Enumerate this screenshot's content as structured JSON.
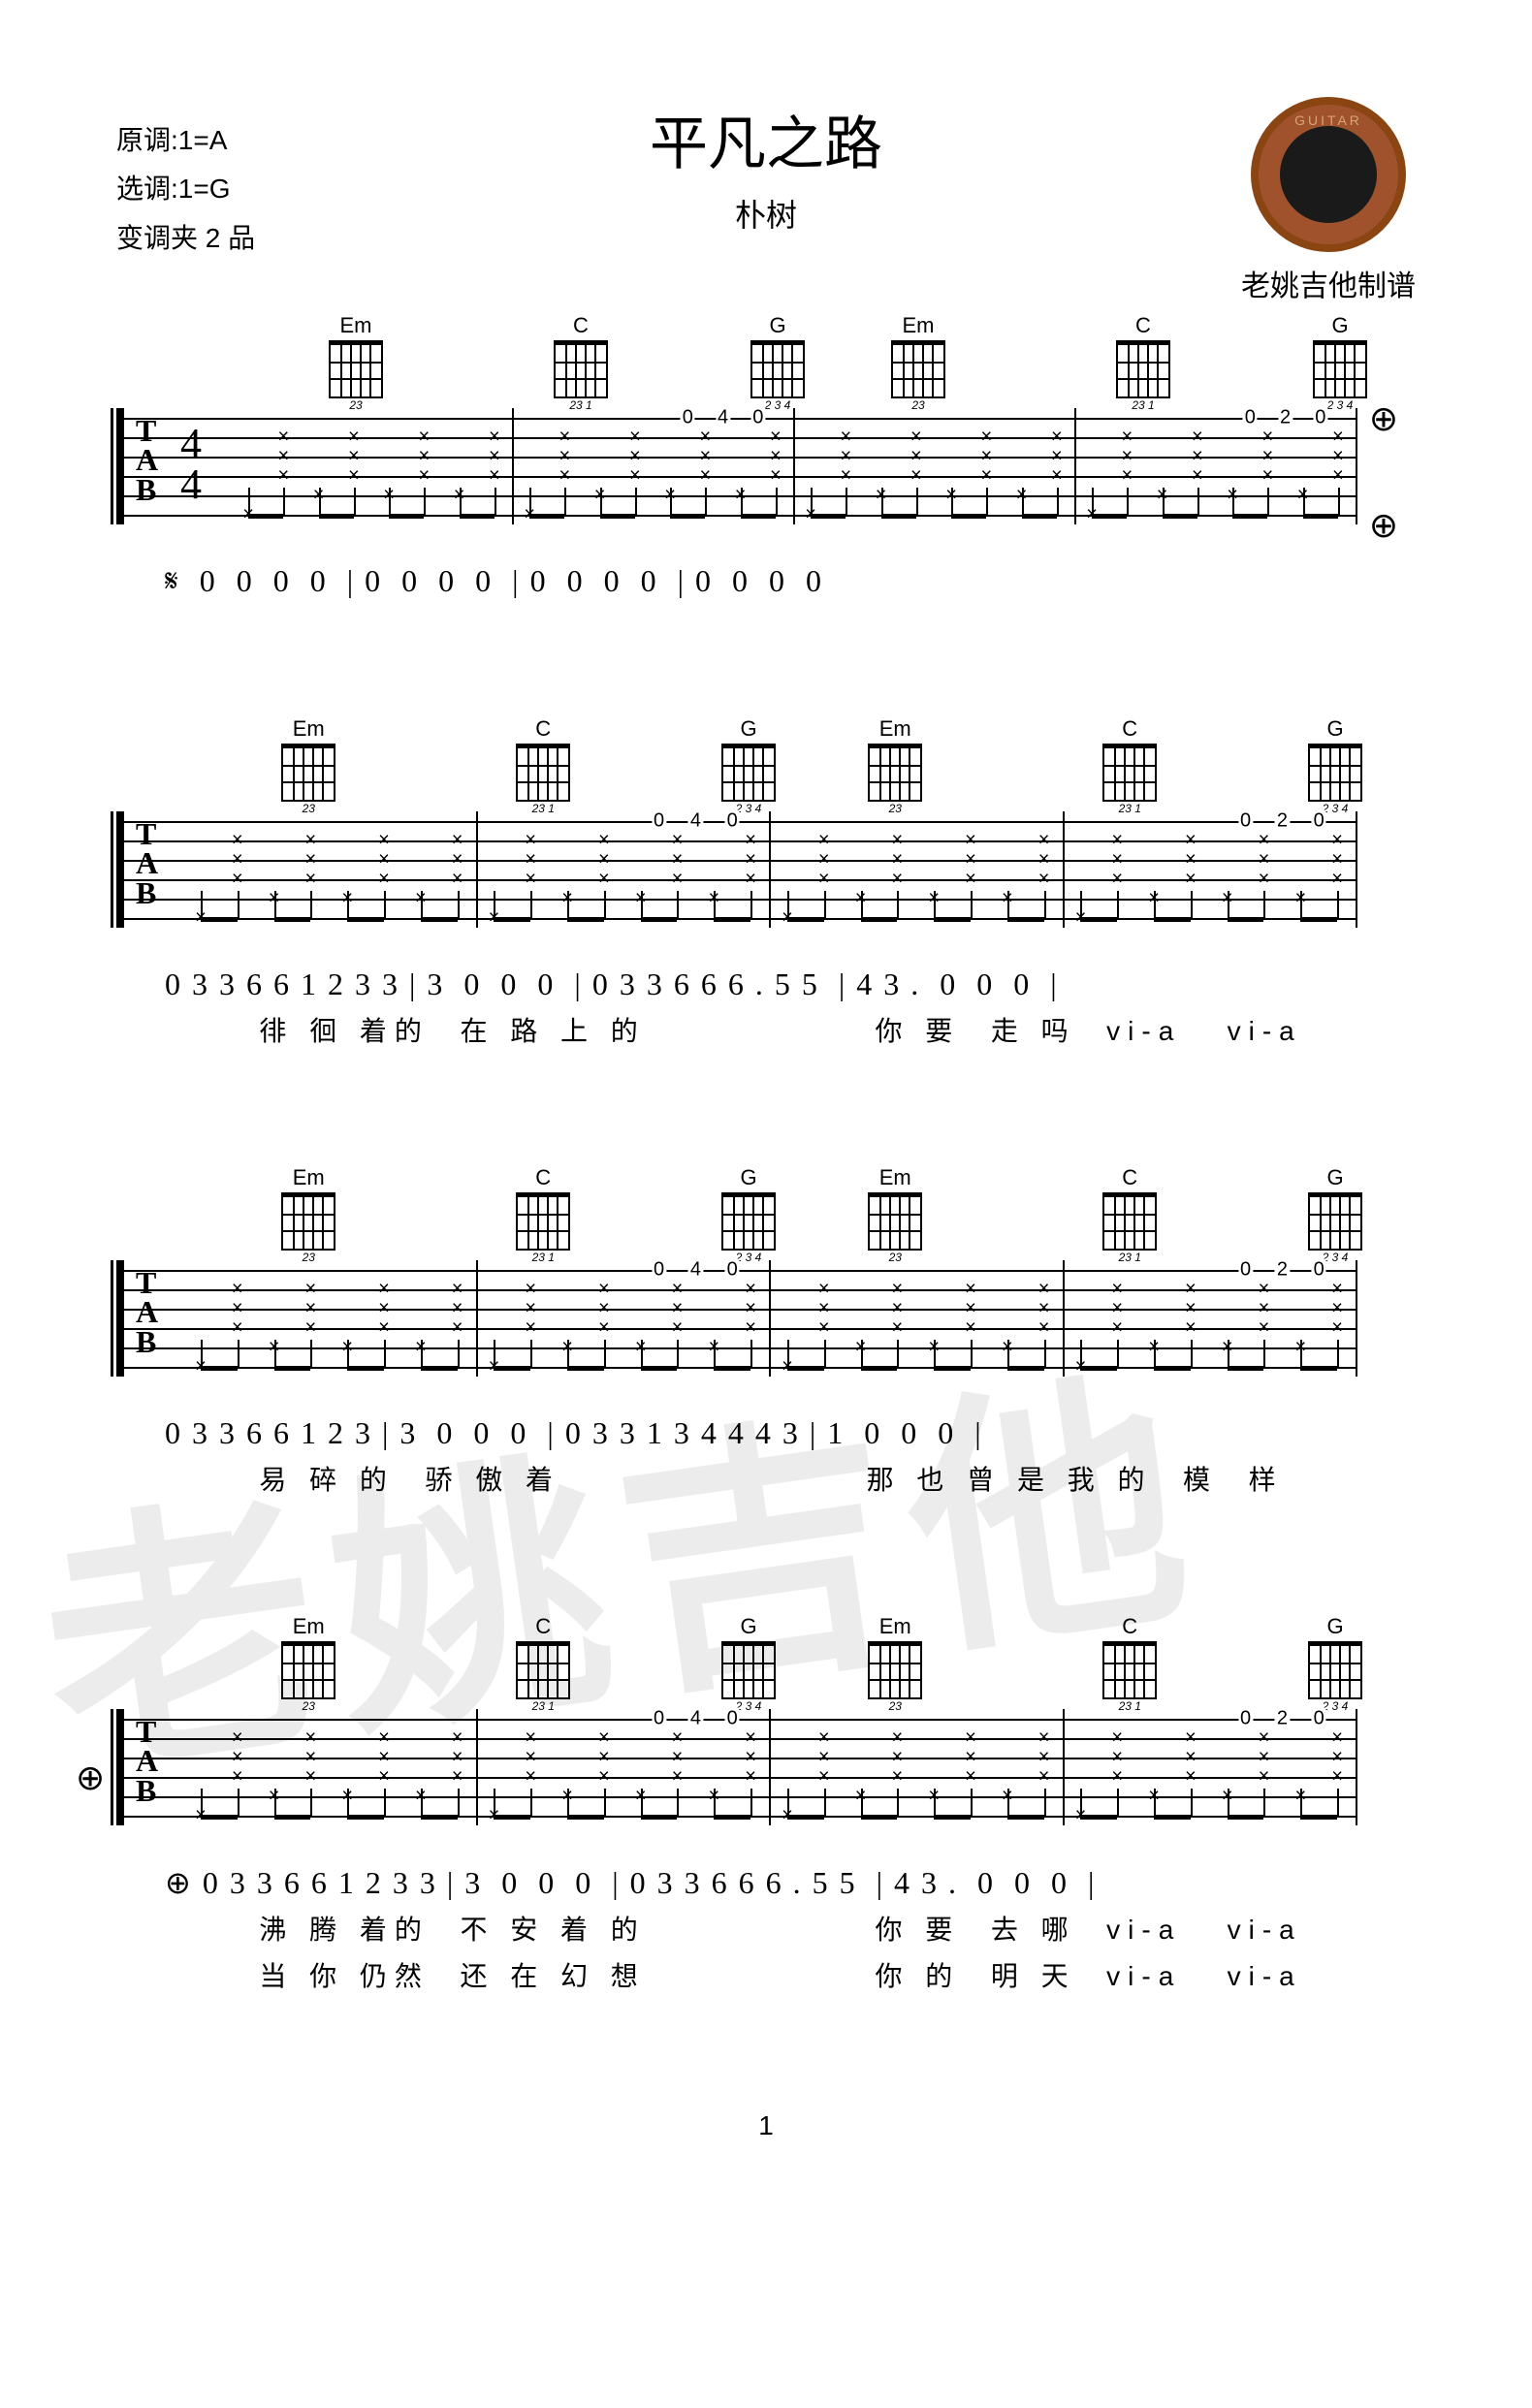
{
  "header": {
    "title": "平凡之路",
    "artist": "朴树",
    "originalKey": "原调:1=A",
    "playKey": "选调:1=G",
    "capo": "变调夹 2 品",
    "logoCaption": "老姚吉他制谱"
  },
  "watermark": "老姚吉他",
  "chords": {
    "Em": {
      "name": "Em",
      "fingering": "23"
    },
    "C": {
      "name": "C",
      "fingering": "23 1"
    },
    "G": {
      "name": "G",
      "fingering": "2 3 4"
    }
  },
  "chordSequence": [
    "Em",
    "C",
    "G",
    "Em",
    "C",
    "G"
  ],
  "tab": {
    "timesig_top": "4",
    "timesig_bottom": "4",
    "clef": "T\nA\nB",
    "strings": 6,
    "fretPattern1": [
      "0",
      "2",
      "0"
    ],
    "fretPattern2": [
      "0",
      "4",
      "0"
    ]
  },
  "systems": [
    {
      "notation": "𝄋  0  0  0  0  | 0  0  0  0  | 0  0  0  0  | 0  0  0  0",
      "lyrics": [],
      "hasTimesig": true,
      "hasCodaEnd": true
    },
    {
      "notation": "0 3 3 6 6 1 2 3 3 | 3  0  0  0  | 0 3 3 6 6 6 . 5 5  | 4 3 .  0  0  0  |",
      "lyrics": [
        "   徘 徊 着的  在 路 上 的               你 要  走 吗  vi-a   vi-a"
      ],
      "hasTimesig": false
    },
    {
      "notation": "0 3 3 6 6 1 2 3 | 3  0  0  0  | 0 3 3 1 3 4 4 4 3 | 1  0  0  0  |",
      "lyrics": [
        "   易 碎 的  骄 傲 着                    那 也 曾 是 我 的  模  样"
      ],
      "hasTimesig": false
    },
    {
      "notation": "⊕ 0 3 3 6 6 1 2 3 3 | 3  0  0  0  | 0 3 3 6 6 6 . 5 5  | 4 3 .  0  0  0  |",
      "lyrics": [
        "   沸 腾 着的  不 安 着 的               你 要  去 哪  vi-a   vi-a",
        "   当 你 仍然  还 在 幻 想               你 的  明 天  vi-a   vi-a"
      ],
      "hasTimesig": false,
      "hasCodaStart": true
    }
  ],
  "pageNumber": "1",
  "colors": {
    "text": "#000000",
    "background": "#ffffff",
    "watermark": "#e0e0e0",
    "logoBorder": "#8b4513"
  }
}
